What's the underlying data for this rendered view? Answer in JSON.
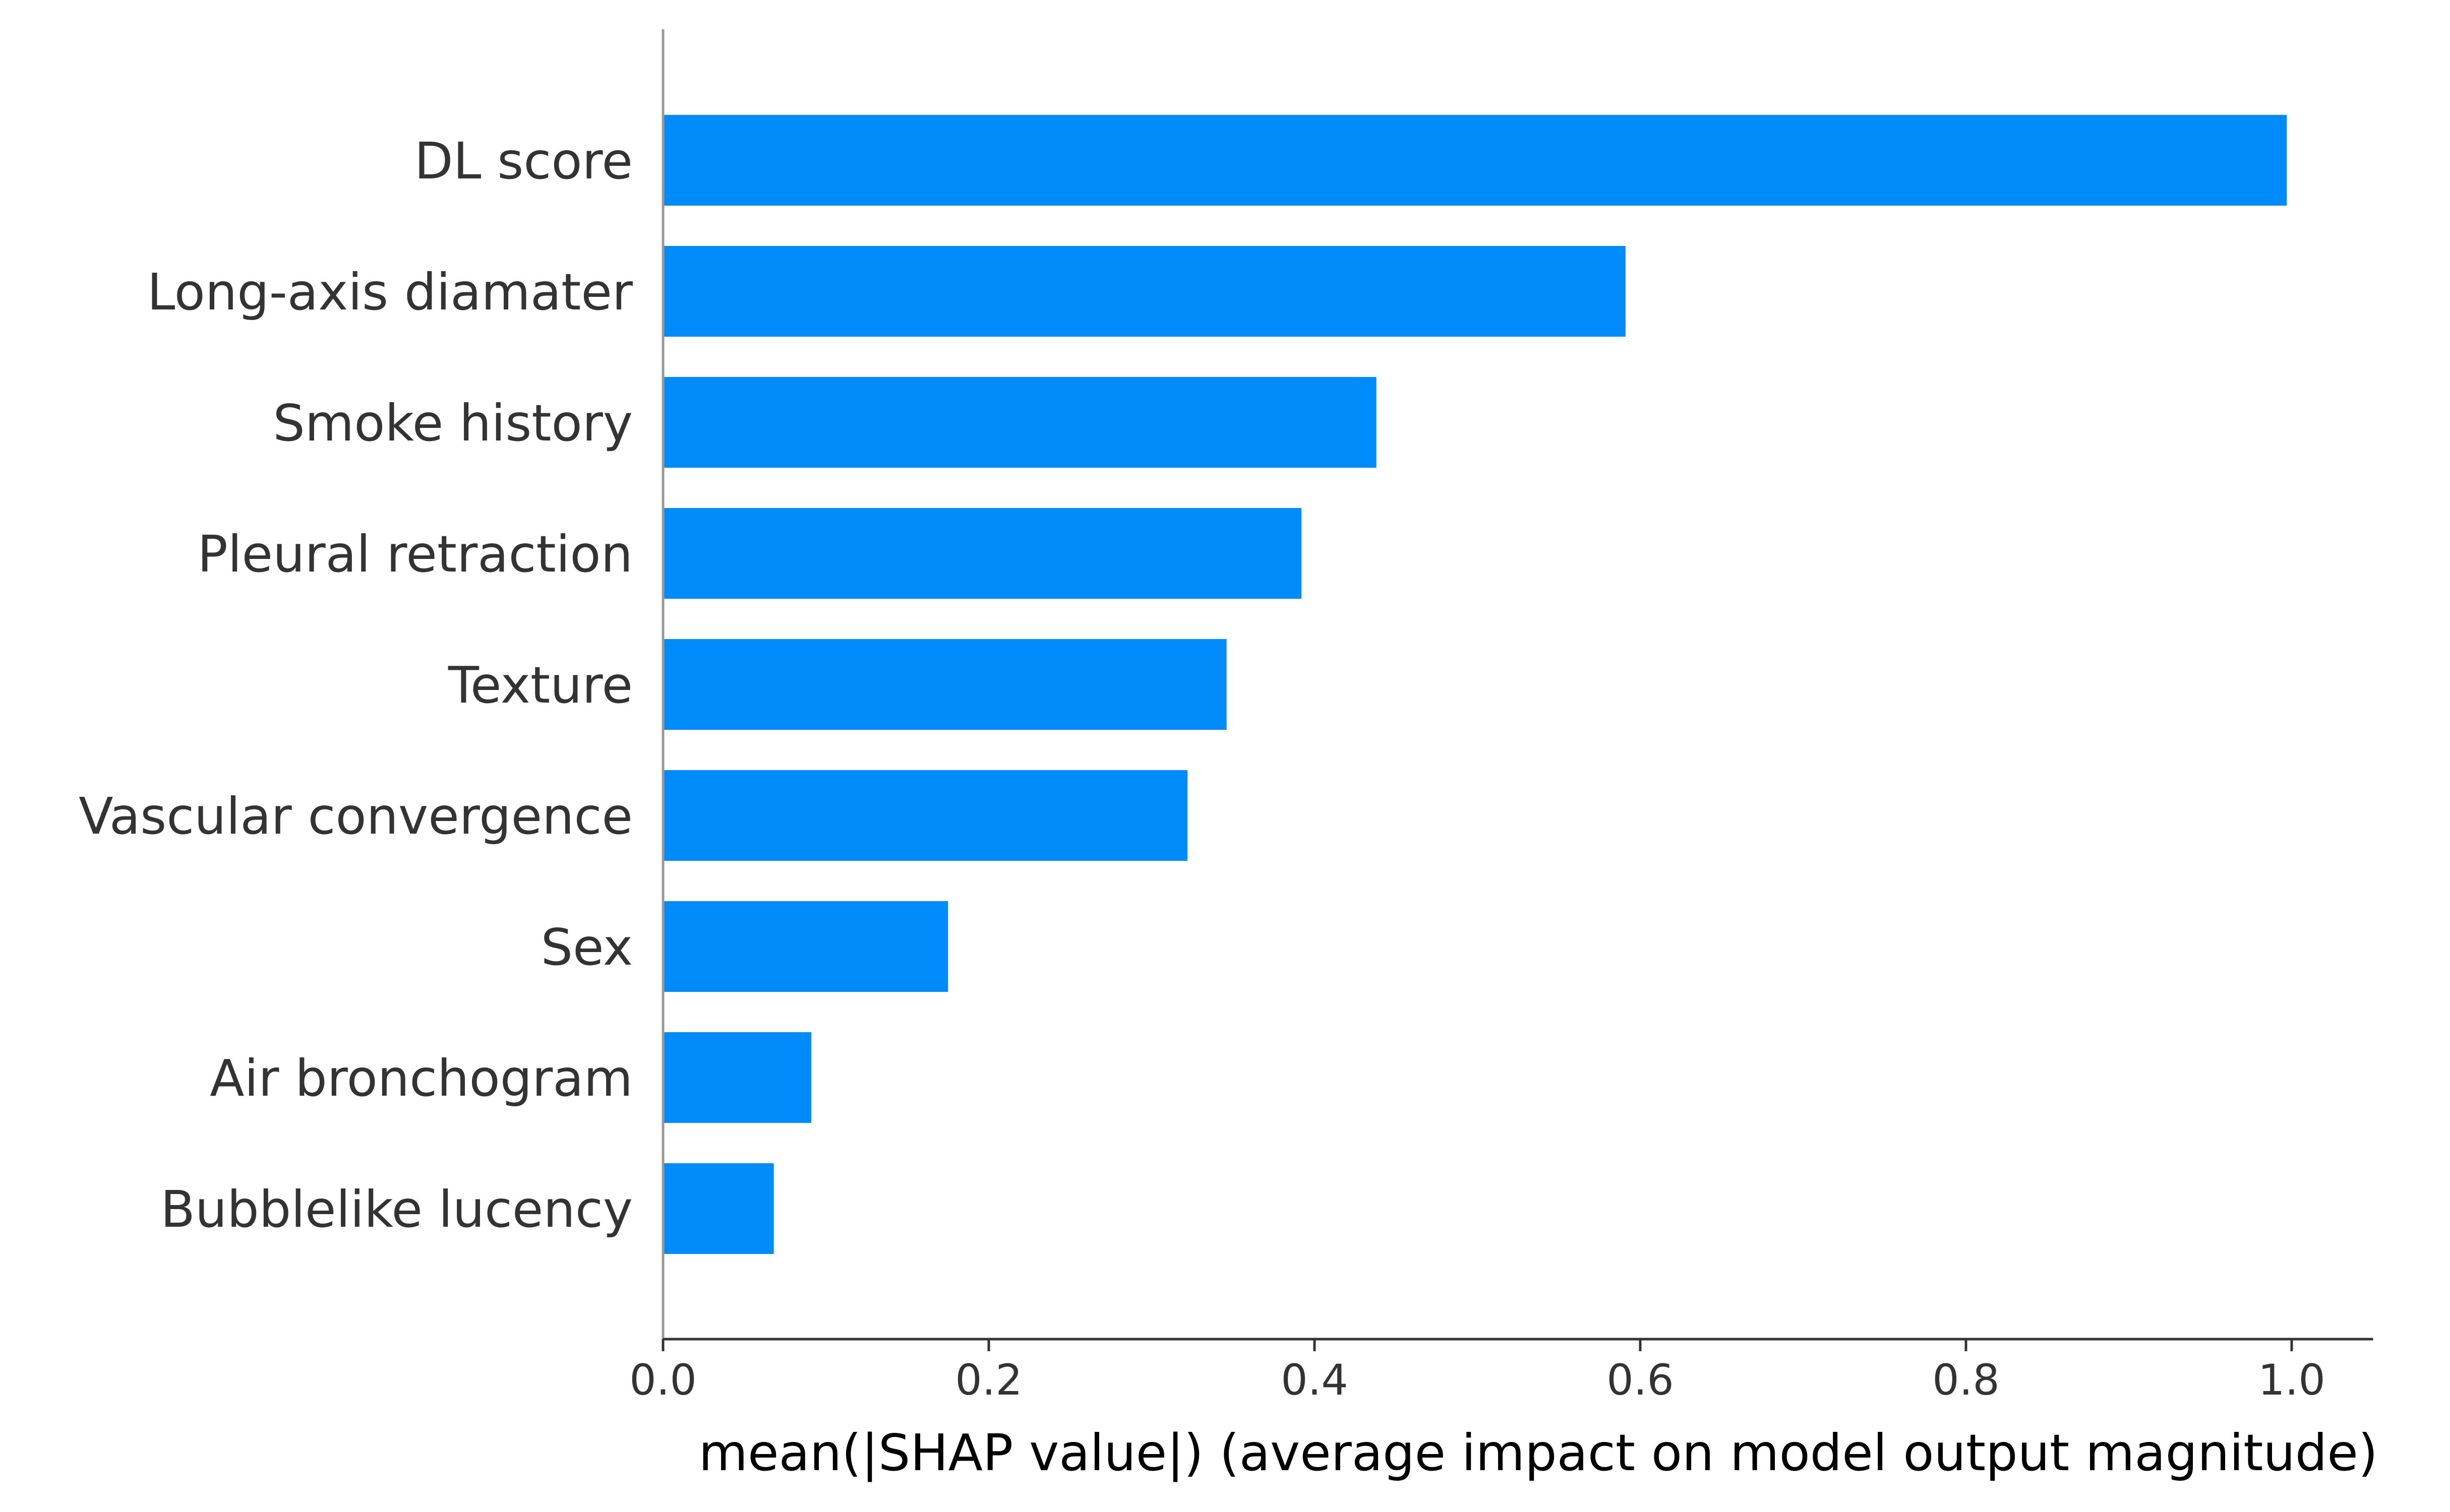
{
  "chart_data": {
    "type": "bar",
    "orientation": "horizontal",
    "categories": [
      "DL score",
      "Long-axis diamater",
      "Smoke history",
      "Pleural retraction",
      "Texture",
      "Vascular convergence",
      "Sex",
      "Air bronchogram",
      "Bubblelike lucency"
    ],
    "values": [
      0.997,
      0.591,
      0.438,
      0.392,
      0.346,
      0.322,
      0.175,
      0.091,
      0.068
    ],
    "xlabel": "mean(|SHAP value|) (average impact on model output magnitude)",
    "ylabel": "",
    "xlim": [
      0,
      1.05
    ],
    "xticks": [
      "0.0",
      "0.2",
      "0.4",
      "0.6",
      "0.8",
      "1.0"
    ],
    "xtick_values": [
      0,
      0.2,
      0.4,
      0.6,
      0.8,
      1.0
    ],
    "grid": false,
    "legend": "none",
    "colors": {
      "bar": "#008bfb",
      "axis": "#333333",
      "left_spine": "#999999"
    }
  }
}
